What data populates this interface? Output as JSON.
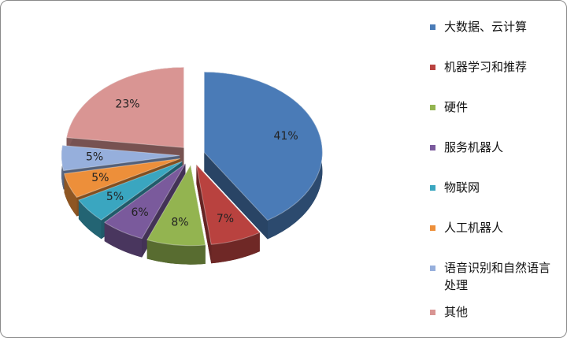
{
  "chart_data": {
    "type": "pie",
    "categories": [
      "大数据、云计算",
      "机器学习和推荐",
      "硬件",
      "服务机器人",
      "物联网",
      "人工机器人",
      "语音识别和自然语言处理",
      "其他"
    ],
    "values": [
      41,
      7,
      8,
      6,
      5,
      5,
      5,
      23
    ],
    "value_labels": [
      "41%",
      "7%",
      "8%",
      "6%",
      "5%",
      "5%",
      "5%",
      "23%"
    ],
    "colors": [
      "#4a7bb7",
      "#b9423f",
      "#93b450",
      "#7a5a9c",
      "#3aa6c0",
      "#ed8f3a",
      "#96afdc",
      "#d99593"
    ],
    "legend": "right"
  }
}
